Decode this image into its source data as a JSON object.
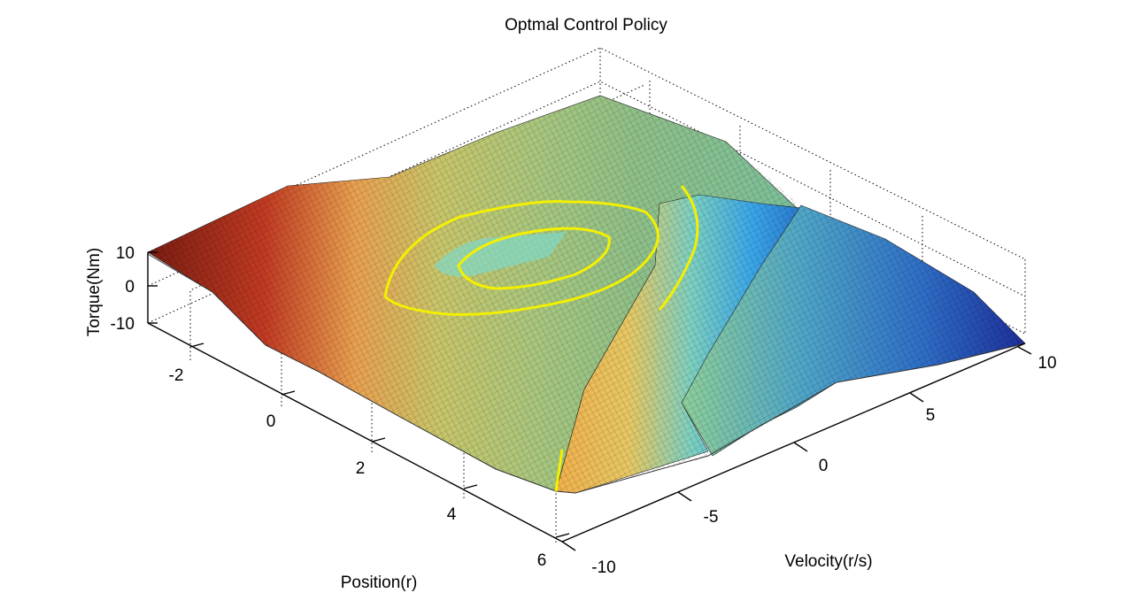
{
  "chart_data": {
    "type": "surface",
    "title": "Optmal Control Policy",
    "xlabel": "Position(r)",
    "ylabel": "Velocity(r/s)",
    "zlabel": "Torque(Nm)",
    "xlim": [
      -3.14,
      6.28
    ],
    "ylim": [
      -10,
      10
    ],
    "zlim": [
      -10,
      10
    ],
    "x_ticks": [
      -2,
      0,
      2,
      4,
      6
    ],
    "y_ticks": [
      -10,
      -5,
      0,
      5,
      10
    ],
    "z_ticks": [
      -10,
      0,
      10
    ],
    "grid": true,
    "colormap": "jet",
    "surface_description_values": {
      "plateau_high_torque": 10,
      "plateau_low_torque": -10,
      "center_torque": 0
    },
    "contour_levels": [
      {
        "name": "outer",
        "color": "#ffff00"
      },
      {
        "name": "inner",
        "color": "#ffff00"
      }
    ]
  }
}
